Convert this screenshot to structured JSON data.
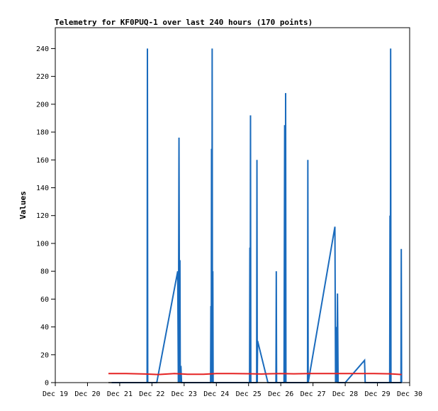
{
  "chart_data": {
    "type": "line",
    "title": "Telemetry for KF0PUQ-1 over last 240 hours (170 points)",
    "xlabel": "",
    "ylabel": "Values",
    "xlim": [
      "Dec 19",
      "Dec 30"
    ],
    "ylim": [
      0,
      255
    ],
    "grid": false,
    "legend": "none",
    "x_ticks": [
      "Dec 19",
      "Dec 20",
      "Dec 21",
      "Dec 22",
      "Dec 23",
      "Dec 24",
      "Dec 25",
      "Dec 26",
      "Dec 27",
      "Dec 28",
      "Dec 29",
      "Dec 30"
    ],
    "y_ticks": [
      0,
      20,
      40,
      60,
      80,
      100,
      120,
      140,
      160,
      180,
      200,
      220,
      240
    ],
    "series": [
      {
        "color": "#1a6bbd",
        "points": [
          [
            20.75,
            0
          ],
          [
            21.85,
            0
          ],
          [
            21.86,
            240
          ],
          [
            21.87,
            0
          ],
          [
            22.15,
            0
          ],
          [
            22.8,
            80
          ],
          [
            22.82,
            0
          ],
          [
            22.84,
            176
          ],
          [
            22.86,
            0
          ],
          [
            22.87,
            88
          ],
          [
            22.88,
            0
          ],
          [
            22.9,
            12
          ],
          [
            22.92,
            0
          ],
          [
            23.82,
            0
          ],
          [
            23.83,
            55
          ],
          [
            23.84,
            0
          ],
          [
            23.85,
            168
          ],
          [
            23.86,
            0
          ],
          [
            23.87,
            240
          ],
          [
            23.88,
            0
          ],
          [
            23.89,
            80
          ],
          [
            23.9,
            0
          ],
          [
            25.03,
            0
          ],
          [
            25.04,
            97
          ],
          [
            25.05,
            0
          ],
          [
            25.06,
            192
          ],
          [
            25.07,
            0
          ],
          [
            25.25,
            0
          ],
          [
            25.26,
            160
          ],
          [
            25.27,
            0
          ],
          [
            25.28,
            30
          ],
          [
            25.6,
            0
          ],
          [
            25.85,
            0
          ],
          [
            25.86,
            80
          ],
          [
            25.87,
            0
          ],
          [
            26.1,
            0
          ],
          [
            26.12,
            185
          ],
          [
            26.14,
            0
          ],
          [
            26.15,
            208
          ],
          [
            26.16,
            0
          ],
          [
            26.83,
            0
          ],
          [
            26.84,
            160
          ],
          [
            26.85,
            0
          ],
          [
            27.68,
            112
          ],
          [
            27.7,
            0
          ],
          [
            27.72,
            40
          ],
          [
            27.74,
            0
          ],
          [
            27.76,
            64
          ],
          [
            27.78,
            0
          ],
          [
            27.85,
            0
          ],
          [
            28.0,
            0
          ],
          [
            28.6,
            16
          ],
          [
            28.62,
            0
          ],
          [
            29.38,
            0
          ],
          [
            29.39,
            120
          ],
          [
            29.4,
            0
          ],
          [
            29.41,
            240
          ],
          [
            29.42,
            0
          ],
          [
            29.73,
            0
          ],
          [
            29.74,
            96
          ],
          [
            29.75,
            0
          ]
        ]
      },
      {
        "color": "#e52222",
        "points": [
          [
            20.65,
            6.5
          ],
          [
            21.2,
            6.5
          ],
          [
            21.8,
            6.2
          ],
          [
            22.2,
            5.8
          ],
          [
            22.7,
            6.5
          ],
          [
            23.1,
            6.0
          ],
          [
            23.6,
            6.0
          ],
          [
            24.0,
            6.5
          ],
          [
            24.5,
            6.5
          ],
          [
            25.0,
            6.4
          ],
          [
            25.4,
            6.2
          ],
          [
            25.7,
            6.4
          ],
          [
            26.0,
            6.5
          ],
          [
            26.4,
            6.3
          ],
          [
            26.9,
            6.5
          ],
          [
            27.4,
            6.5
          ],
          [
            27.9,
            6.5
          ],
          [
            28.4,
            6.5
          ],
          [
            28.9,
            6.5
          ],
          [
            29.4,
            6.3
          ],
          [
            29.75,
            5.8
          ]
        ]
      },
      {
        "color": "#000000",
        "points": [
          [
            20.65,
            0
          ],
          [
            29.75,
            0
          ]
        ]
      }
    ]
  }
}
